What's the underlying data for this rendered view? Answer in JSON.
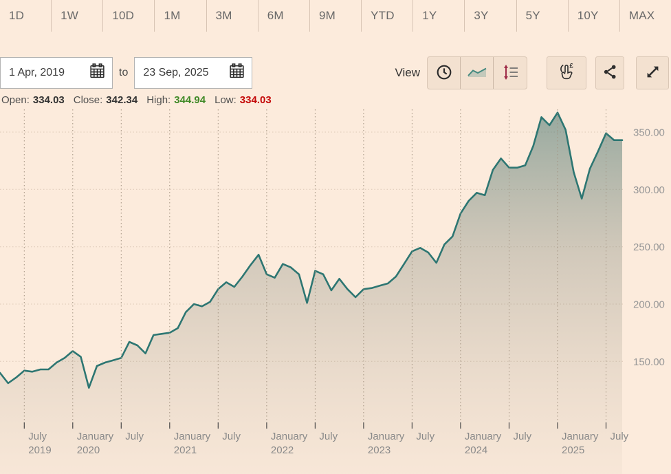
{
  "page": {
    "background": "#fcebdc"
  },
  "toolbar": {
    "ranges": [
      "1D",
      "1W",
      "10D",
      "1M",
      "3M",
      "6M",
      "9M",
      "YTD",
      "1Y",
      "3Y",
      "5Y",
      "10Y",
      "MAX"
    ]
  },
  "date_range": {
    "from": "1 Apr, 2019",
    "separator": "to",
    "to": "23 Sep, 2025"
  },
  "view": {
    "label": "View"
  },
  "stats": {
    "open_label": "Open:",
    "open_value": "334.03",
    "close_label": "Close:",
    "close_value": "342.34",
    "high_label": "High:",
    "high_value": "344.94",
    "low_label": "Low:",
    "low_value": "334.03"
  },
  "icons": {
    "calendar": "calendar-icon",
    "clock": "clock-view-icon",
    "line_chart": "line-chart-view-icon",
    "price_scale": "price-scale-view-icon",
    "gesture": "gesture-pound-icon",
    "share": "share-icon",
    "fullscreen": "fullscreen-expand-icon"
  },
  "colors": {
    "background": "#fcebdc",
    "button_bg": "#f3e1d0",
    "line": "#2d7672",
    "high_green": "#418a28",
    "low_red": "#c40a0a",
    "axis_text": "#8a8a8a"
  },
  "chart_data": {
    "type": "area",
    "title": "",
    "xlabel": "",
    "ylabel": "",
    "x_unit": "month",
    "x_start": "Apr 2019",
    "x_end": "Sep 2025",
    "legend": false,
    "grid": true,
    "y_axis_side": "right",
    "ylim": [
      52,
      372
    ],
    "monthly_values": [
      140,
      131,
      136,
      142,
      141,
      143,
      143,
      149,
      153,
      159,
      154,
      127,
      146,
      149,
      151,
      153,
      167,
      164,
      157,
      173,
      174,
      175,
      179,
      193,
      200,
      198,
      202,
      213,
      219,
      215,
      224,
      234,
      243,
      226,
      223,
      235,
      232,
      226,
      201,
      229,
      226,
      212,
      222,
      213,
      206,
      213,
      214,
      216,
      218,
      224,
      235,
      246,
      249,
      245,
      236,
      252,
      259,
      279,
      290,
      297,
      295,
      317,
      327,
      319,
      319,
      321,
      338,
      363,
      356,
      367,
      352,
      315,
      292,
      318,
      333,
      349,
      343,
      343
    ],
    "y_axis": {
      "ticks": [
        {
          "value": 350,
          "label": "350.00"
        },
        {
          "value": 300,
          "label": "300.00"
        },
        {
          "value": 250,
          "label": "250.00"
        },
        {
          "value": 200,
          "label": "200.00"
        },
        {
          "value": 150,
          "label": "150.00"
        }
      ]
    },
    "x_axis": {
      "ticks": [
        {
          "month_index": 3,
          "line1": "July",
          "line2": "2019"
        },
        {
          "month_index": 9,
          "line1": "January",
          "line2": "2020"
        },
        {
          "month_index": 15,
          "line1": "July",
          "line2": ""
        },
        {
          "month_index": 21,
          "line1": "January",
          "line2": "2021"
        },
        {
          "month_index": 27,
          "line1": "July",
          "line2": ""
        },
        {
          "month_index": 33,
          "line1": "January",
          "line2": "2022"
        },
        {
          "month_index": 39,
          "line1": "July",
          "line2": ""
        },
        {
          "month_index": 45,
          "line1": "January",
          "line2": "2023"
        },
        {
          "month_index": 51,
          "line1": "July",
          "line2": ""
        },
        {
          "month_index": 57,
          "line1": "January",
          "line2": "2024"
        },
        {
          "month_index": 63,
          "line1": "July",
          "line2": ""
        },
        {
          "month_index": 69,
          "line1": "January",
          "line2": "2025"
        },
        {
          "month_index": 75,
          "line1": "July",
          "line2": ""
        }
      ]
    },
    "line_color": "#2d7672"
  }
}
